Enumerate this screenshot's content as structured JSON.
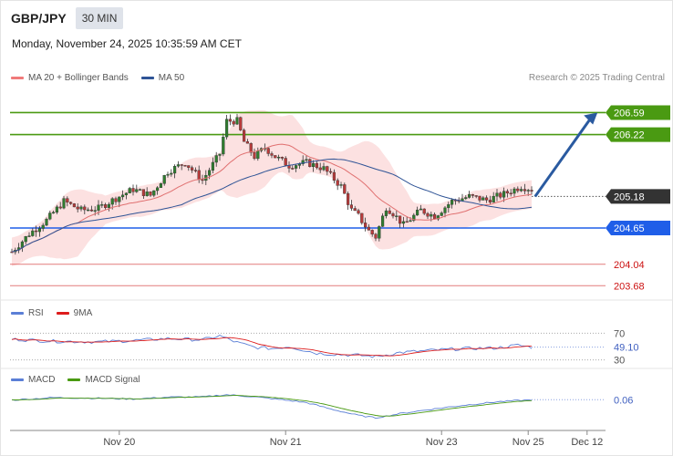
{
  "header": {
    "symbol": "GBP/JPY",
    "timeframe": "30 MIN"
  },
  "timestamp": "Monday, November 24, 2025 10:35:59 AM CET",
  "credit": "Research © 2025 Trading Central",
  "legends": {
    "main": [
      {
        "label": "MA 20 + Bollinger Bands",
        "color": "#f07a7a"
      },
      {
        "label": "MA 50",
        "color": "#2f5496"
      }
    ],
    "rsi": [
      {
        "label": "RSI",
        "color": "#5b7fd6"
      },
      {
        "label": "9MA",
        "color": "#dd1c1c"
      }
    ],
    "macd": [
      {
        "label": "MACD",
        "color": "#5b7fd6"
      },
      {
        "label": "MACD Signal",
        "color": "#4a9a12"
      }
    ]
  },
  "colors": {
    "resistance": "#4a9a12",
    "current": "#333333",
    "pivot": "#1f5ee8",
    "support": "#cc1111",
    "candle": "#2f7d2f",
    "arrow": "#2a5aa0",
    "band": "#fcdcdc"
  },
  "chart_data": [
    {
      "type": "candlestick",
      "ylim": [
        203.5,
        206.95
      ],
      "x_tick_labels": [
        {
          "label": "Nov 20",
          "index": 31
        },
        {
          "label": "Nov 21",
          "index": 79
        },
        {
          "label": "Nov 23",
          "index": 124
        },
        {
          "label": "Nov 25",
          "index": 149
        },
        {
          "label": "Dec 12",
          "index": 166
        }
      ],
      "levels": [
        {
          "value": 206.59,
          "label": "206.59",
          "kind": "resistance"
        },
        {
          "value": 206.22,
          "label": "206.22",
          "kind": "resistance"
        },
        {
          "value": 205.18,
          "label": "205.18",
          "kind": "current"
        },
        {
          "value": 204.65,
          "label": "204.65",
          "kind": "pivot"
        },
        {
          "value": 204.04,
          "label": "204.04",
          "kind": "support"
        },
        {
          "value": 203.68,
          "label": "203.68",
          "kind": "support"
        }
      ],
      "projection": {
        "from": {
          "index": 151,
          "value": 205.18
        },
        "to": {
          "index": 169,
          "value": 206.59
        }
      },
      "close_anchors": [
        [
          0,
          204.25
        ],
        [
          5,
          204.55
        ],
        [
          10,
          204.78
        ],
        [
          15,
          205.1
        ],
        [
          20,
          204.95
        ],
        [
          25,
          204.98
        ],
        [
          30,
          205.15
        ],
        [
          35,
          205.3
        ],
        [
          40,
          205.2
        ],
        [
          45,
          205.6
        ],
        [
          50,
          205.75
        ],
        [
          55,
          205.45
        ],
        [
          60,
          205.9
        ],
        [
          62,
          206.45
        ],
        [
          65,
          206.45
        ],
        [
          67,
          206.1
        ],
        [
          70,
          205.85
        ],
        [
          73,
          206.0
        ],
        [
          76,
          205.85
        ],
        [
          80,
          205.7
        ],
        [
          85,
          205.75
        ],
        [
          90,
          205.65
        ],
        [
          95,
          205.35
        ],
        [
          98,
          204.95
        ],
        [
          100,
          204.85
        ],
        [
          103,
          204.6
        ],
        [
          105,
          204.5
        ],
        [
          108,
          205.0
        ],
        [
          110,
          204.9
        ],
        [
          113,
          204.7
        ],
        [
          118,
          204.95
        ],
        [
          122,
          204.85
        ],
        [
          127,
          205.1
        ],
        [
          132,
          205.18
        ],
        [
          137,
          205.12
        ],
        [
          142,
          205.22
        ],
        [
          147,
          205.35
        ],
        [
          150,
          205.3
        ]
      ]
    },
    {
      "type": "line",
      "name": "RSI",
      "ylim": [
        20,
        80
      ],
      "reference_lines": [
        70,
        30
      ],
      "last_value": "49.10",
      "tick_labels": [
        "70",
        "30"
      ],
      "rsi_anchors": [
        [
          0,
          61
        ],
        [
          12,
          58
        ],
        [
          25,
          57
        ],
        [
          35,
          59
        ],
        [
          45,
          62
        ],
        [
          55,
          60
        ],
        [
          60,
          66
        ],
        [
          65,
          56
        ],
        [
          70,
          49
        ],
        [
          75,
          47
        ],
        [
          80,
          50
        ],
        [
          88,
          40
        ],
        [
          95,
          38
        ],
        [
          100,
          37
        ],
        [
          105,
          35
        ],
        [
          112,
          41
        ],
        [
          120,
          44
        ],
        [
          130,
          47
        ],
        [
          140,
          48
        ],
        [
          146,
          52
        ],
        [
          150,
          49
        ]
      ]
    },
    {
      "type": "line",
      "name": "MACD",
      "ylim": [
        -0.7,
        0.4
      ],
      "last_value": "0.06",
      "macd_anchors": [
        [
          0,
          0.05
        ],
        [
          12,
          0.12
        ],
        [
          25,
          0.1
        ],
        [
          35,
          0.08
        ],
        [
          45,
          0.13
        ],
        [
          55,
          0.14
        ],
        [
          62,
          0.2
        ],
        [
          70,
          0.14
        ],
        [
          78,
          0.06
        ],
        [
          85,
          -0.02
        ],
        [
          92,
          -0.2
        ],
        [
          100,
          -0.38
        ],
        [
          105,
          -0.45
        ],
        [
          112,
          -0.33
        ],
        [
          120,
          -0.22
        ],
        [
          130,
          -0.1
        ],
        [
          140,
          0.0
        ],
        [
          150,
          0.06
        ]
      ]
    }
  ]
}
